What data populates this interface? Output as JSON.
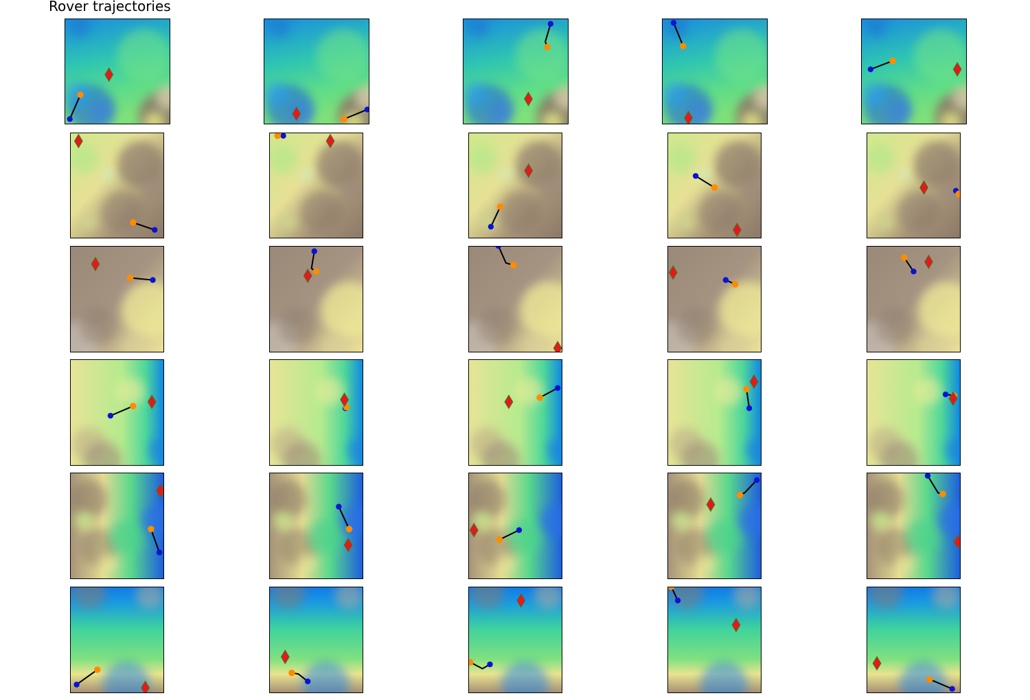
{
  "title": "Rover trajectories",
  "colors": {
    "start": "#0a12d6",
    "end": "#ff8c00",
    "goal": "#e31a1c",
    "goal_edge": "#228b22",
    "path": "#000000",
    "frame": "#000000"
  },
  "terrain_colormap": "terrain",
  "chart_data": {
    "type": "scatter",
    "title": "Rover trajectories",
    "layout": "6x5 grid of terrain maps",
    "axes_ticks": false,
    "xlim": [
      0,
      1
    ],
    "ylim": [
      0,
      1
    ],
    "rows": [
      {
        "terrain": "blue-green lowlands with blue crater field lower-left and grey-brown highlands lower-right",
        "panels": [
          {
            "path": [
              [
                0.05,
                0.05
              ],
              [
                0.15,
                0.28
              ]
            ],
            "goal": [
              0.42,
              0.47
            ]
          },
          {
            "path": [
              [
                0.98,
                0.14
              ],
              [
                0.76,
                0.05
              ]
            ],
            "goal": [
              0.31,
              0.1
            ]
          },
          {
            "path": [
              [
                0.83,
                0.95
              ],
              [
                0.78,
                0.78
              ],
              [
                0.8,
                0.73
              ]
            ],
            "goal": [
              0.62,
              0.24
            ]
          },
          {
            "path": [
              [
                0.11,
                0.96
              ],
              [
                0.2,
                0.74
              ]
            ],
            "goal": [
              0.25,
              0.06
            ]
          },
          {
            "path": [
              [
                0.09,
                0.52
              ],
              [
                0.3,
                0.6
              ]
            ],
            "goal": [
              0.91,
              0.52
            ]
          }
        ]
      },
      {
        "terrain": "yellow-brown cratered highlands",
        "panels": [
          {
            "path": [
              [
                0.9,
                0.08
              ],
              [
                0.67,
                0.15
              ]
            ],
            "goal": [
              0.09,
              0.92
            ]
          },
          {
            "path": [
              [
                0.15,
                0.97
              ],
              [
                0.09,
                0.97
              ]
            ],
            "goal": [
              0.65,
              0.92
            ]
          },
          {
            "path": [
              [
                0.24,
                0.11
              ],
              [
                0.34,
                0.3
              ]
            ],
            "goal": [
              0.64,
              0.64
            ]
          },
          {
            "path": [
              [
                0.3,
                0.59
              ],
              [
                0.5,
                0.48
              ]
            ],
            "goal": [
              0.74,
              0.08
            ]
          },
          {
            "path": [
              [
                0.95,
                0.45
              ],
              [
                0.98,
                0.42
              ]
            ],
            "goal": [
              0.61,
              0.48
            ]
          }
        ]
      },
      {
        "terrain": "brown-tan plateau crossed by a blue-green canyon in the upper part",
        "panels": [
          {
            "path": [
              [
                0.88,
                0.68
              ],
              [
                0.64,
                0.7
              ]
            ],
            "goal": [
              0.27,
              0.83
            ]
          },
          {
            "path": [
              [
                0.48,
                0.95
              ],
              [
                0.45,
                0.79
              ],
              [
                0.49,
                0.76
              ],
              [
                0.5,
                0.76
              ]
            ],
            "goal": [
              0.41,
              0.72
            ]
          },
          {
            "path": [
              [
                0.32,
                1.0
              ],
              [
                0.4,
                0.84
              ],
              [
                0.48,
                0.82
              ],
              [
                0.48,
                0.82
              ]
            ],
            "goal": [
              0.95,
              0.04
            ]
          },
          {
            "path": [
              [
                0.62,
                0.68
              ],
              [
                0.72,
                0.64
              ]
            ],
            "goal": [
              0.06,
              0.75
            ]
          },
          {
            "path": [
              [
                0.5,
                0.76
              ],
              [
                0.4,
                0.89
              ]
            ],
            "goal": [
              0.66,
              0.85
            ]
          }
        ]
      },
      {
        "terrain": "yellow-green plains with blue channels to the right",
        "panels": [
          {
            "path": [
              [
                0.43,
                0.47
              ],
              [
                0.67,
                0.56
              ]
            ],
            "goal": [
              0.87,
              0.6
            ]
          },
          {
            "path": [
              [
                0.81,
                0.54
              ],
              [
                0.82,
                0.55
              ]
            ],
            "goal": [
              0.8,
              0.62
            ]
          },
          {
            "path": [
              [
                0.95,
                0.73
              ],
              [
                0.76,
                0.64
              ]
            ],
            "goal": [
              0.43,
              0.6
            ]
          },
          {
            "path": [
              [
                0.87,
                0.54
              ],
              [
                0.84,
                0.72
              ]
            ],
            "goal": [
              0.92,
              0.79
            ]
          },
          {
            "path": [
              [
                0.84,
                0.67
              ],
              [
                0.93,
                0.66
              ]
            ],
            "goal": [
              0.92,
              0.63
            ]
          }
        ]
      },
      {
        "terrain": "green lowland with blue basin to the right and yellow-brown cratered highlands to the left",
        "panels": [
          {
            "path": [
              [
                0.95,
                0.25
              ],
              [
                0.86,
                0.47
              ]
            ],
            "goal": [
              0.96,
              0.83
            ]
          },
          {
            "path": [
              [
                0.74,
                0.68
              ],
              [
                0.85,
                0.47
              ]
            ],
            "goal": [
              0.84,
              0.32
            ]
          },
          {
            "path": [
              [
                0.54,
                0.46
              ],
              [
                0.33,
                0.37
              ]
            ],
            "goal": [
              0.06,
              0.46
            ]
          },
          {
            "path": [
              [
                0.95,
                0.93
              ],
              [
                0.82,
                0.81
              ],
              [
                0.77,
                0.79
              ]
            ],
            "goal": [
              0.46,
              0.7
            ]
          },
          {
            "path": [
              [
                0.65,
                0.97
              ],
              [
                0.76,
                0.81
              ],
              [
                0.81,
                0.8
              ]
            ],
            "goal": [
              0.97,
              0.35
            ]
          }
        ]
      },
      {
        "terrain": "smooth blue-to-green plain grading to yellow-brown rough terrain at the bottom",
        "panels": [
          {
            "path": [
              [
                0.07,
                0.08
              ],
              [
                0.29,
                0.22
              ]
            ],
            "goal": [
              0.8,
              0.05
            ]
          },
          {
            "path": [
              [
                0.41,
                0.11
              ],
              [
                0.31,
                0.18
              ],
              [
                0.24,
                0.19
              ]
            ],
            "goal": [
              0.17,
              0.34
            ]
          },
          {
            "path": [
              [
                0.23,
                0.27
              ],
              [
                0.15,
                0.23
              ],
              [
                0.02,
                0.29
              ]
            ],
            "goal": [
              0.56,
              0.87
            ]
          },
          {
            "path": [
              [
                0.11,
                0.87
              ],
              [
                0.04,
                1.0
              ]
            ],
            "goal": [
              0.73,
              0.64
            ]
          },
          {
            "path": [
              [
                0.91,
                0.04
              ],
              [
                0.67,
                0.13
              ]
            ],
            "goal": [
              0.11,
              0.28
            ]
          }
        ]
      }
    ]
  }
}
